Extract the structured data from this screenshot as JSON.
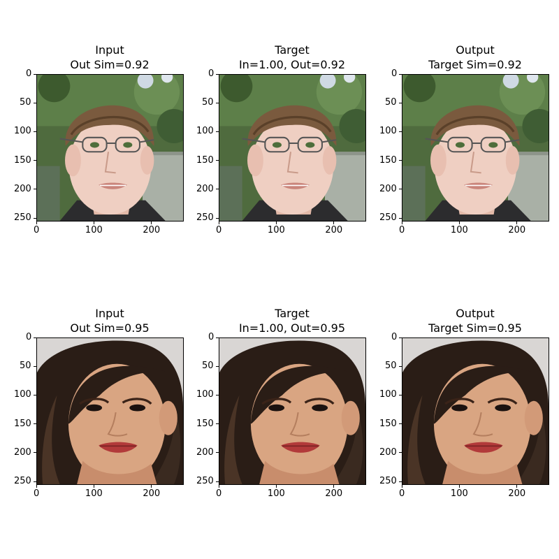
{
  "chart_data": [
    {
      "type": "image",
      "title": "Input\nOut Sim=0.92",
      "image_subject": "young man with light brown bangs and thin metal-rimmed glasses, outdoor background with green trees and fence",
      "xlim": [
        0,
        256
      ],
      "ylim": [
        256,
        0
      ],
      "xticks": [
        0,
        100,
        200
      ],
      "yticks": [
        0,
        50,
        100,
        150,
        200,
        250
      ]
    },
    {
      "type": "image",
      "title": "Target\nIn=1.00, Out=0.92",
      "image_subject": "young man with light brown bangs and thin metal-rimmed glasses, outdoor background with green trees and fence",
      "xlim": [
        0,
        256
      ],
      "ylim": [
        256,
        0
      ],
      "xticks": [
        0,
        100,
        200
      ],
      "yticks": [
        0,
        50,
        100,
        150,
        200,
        250
      ]
    },
    {
      "type": "image",
      "title": "Output\nTarget Sim=0.92",
      "image_subject": "young man with light brown bangs and thin metal-rimmed glasses, outdoor background with green trees and fence",
      "xlim": [
        0,
        256
      ],
      "ylim": [
        256,
        0
      ],
      "xticks": [
        0,
        100,
        200
      ],
      "yticks": [
        0,
        50,
        100,
        150,
        200,
        250
      ]
    },
    {
      "type": "image",
      "title": "Input\nOut Sim=0.95",
      "image_subject": "young woman with long dark brown hair and red lips, light gray background",
      "xlim": [
        0,
        256
      ],
      "ylim": [
        256,
        0
      ],
      "xticks": [
        0,
        100,
        200
      ],
      "yticks": [
        0,
        50,
        100,
        150,
        200,
        250
      ]
    },
    {
      "type": "image",
      "title": "Target\nIn=1.00, Out=0.95",
      "image_subject": "young woman with long dark brown hair and red lips, light gray background",
      "xlim": [
        0,
        256
      ],
      "ylim": [
        256,
        0
      ],
      "xticks": [
        0,
        100,
        200
      ],
      "yticks": [
        0,
        50,
        100,
        150,
        200,
        250
      ]
    },
    {
      "type": "image",
      "title": "Output\nTarget Sim=0.95",
      "image_subject": "young woman with long dark brown hair and red lips, light gray background",
      "xlim": [
        0,
        256
      ],
      "ylim": [
        256,
        0
      ],
      "xticks": [
        0,
        100,
        200
      ],
      "yticks": [
        0,
        50,
        100,
        150,
        200,
        250
      ]
    }
  ]
}
